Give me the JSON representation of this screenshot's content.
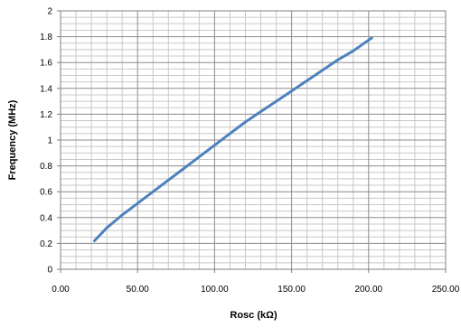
{
  "chart_data": {
    "type": "line",
    "title": "",
    "xlabel": "Rosc (kΩ)",
    "ylabel": "Frequency (MHz)",
    "xlim": [
      0,
      250
    ],
    "ylim": [
      0,
      2
    ],
    "x_ticks": [
      "0.00",
      "50.00",
      "100.00",
      "150.00",
      "200.00",
      "250.00"
    ],
    "y_ticks": [
      "0",
      "0.2",
      "0.4",
      "0.6",
      "0.8",
      "1",
      "1.2",
      "1.4",
      "1.6",
      "1.8",
      "2"
    ],
    "grid": true,
    "legend": "none",
    "series": [
      {
        "color": "#4f81bd",
        "x": [
          22,
          30,
          40,
          50,
          60,
          70,
          80,
          90,
          100,
          110,
          120,
          130,
          140,
          150,
          160,
          170,
          180,
          190,
          202
        ],
        "y": [
          0.22,
          0.32,
          0.42,
          0.51,
          0.6,
          0.69,
          0.78,
          0.87,
          0.96,
          1.05,
          1.14,
          1.22,
          1.3,
          1.38,
          1.46,
          1.54,
          1.62,
          1.69,
          1.79
        ]
      }
    ]
  }
}
